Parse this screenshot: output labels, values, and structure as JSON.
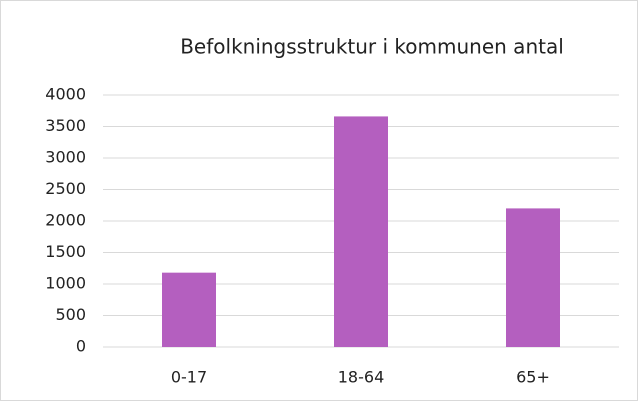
{
  "chart_data": {
    "type": "bar",
    "title": "Befolkningsstruktur i kommunen antal",
    "categories": [
      "0-17",
      "18-64",
      "65+"
    ],
    "values": [
      1180,
      3660,
      2200
    ],
    "color": "#b45fbf",
    "ylim": [
      0,
      4000
    ],
    "yticks": [
      0,
      500,
      1000,
      1500,
      2000,
      2500,
      3000,
      3500,
      4000
    ],
    "grid": true
  }
}
